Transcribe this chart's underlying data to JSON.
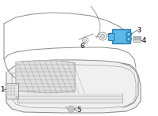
{
  "background_color": "#ffffff",
  "line_color": "#8a8a8a",
  "dark_line_color": "#555555",
  "sensor_fill": "#5bb8e8",
  "sensor_edge": "#2a7aaa",
  "callout_color": "#444444",
  "callout_fs": 5.5,
  "lw_main": 0.7,
  "lw_thin": 0.4,
  "lw_thick": 1.0
}
